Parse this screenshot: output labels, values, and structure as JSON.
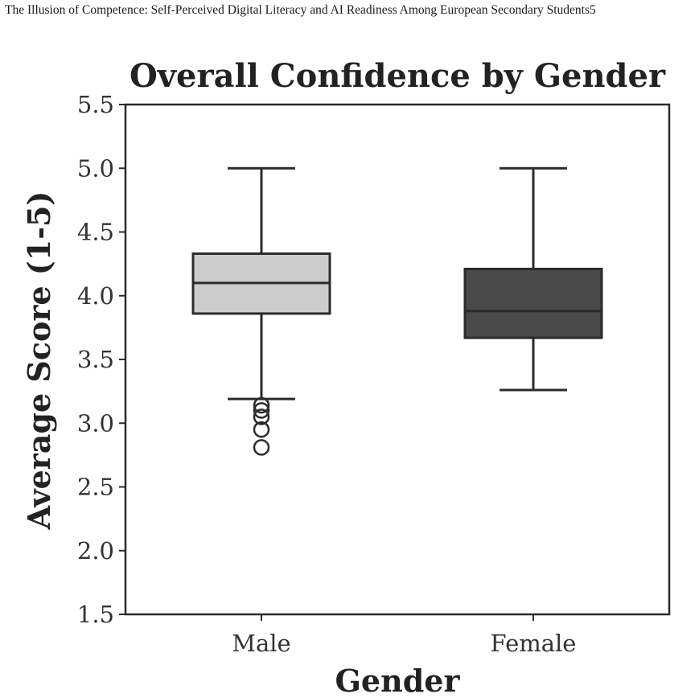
{
  "page": {
    "running_header": "The Illusion of Competence: Self-Perceived Digital Literacy and AI Readiness Among European Secondary Students5"
  },
  "chart_data": {
    "type": "box",
    "title": "Overall Confidence by Gender",
    "xlabel": "Gender",
    "ylabel": "Average Score (1-5)",
    "ylim": [
      1.5,
      5.5
    ],
    "yticks": [
      "1.5",
      "2.0",
      "2.5",
      "3.0",
      "3.5",
      "4.0",
      "4.5",
      "5.0",
      "5.5"
    ],
    "categories": [
      "Male",
      "Female"
    ],
    "boxes": [
      {
        "category": "Male",
        "whisker_low": 3.19,
        "q1": 3.86,
        "median": 4.1,
        "q3": 4.33,
        "whisker_high": 5.0,
        "outliers": [
          3.14,
          3.1,
          3.05,
          2.95,
          2.81
        ],
        "color": "#cccccc"
      },
      {
        "category": "Female",
        "whisker_low": 3.26,
        "q1": 3.67,
        "median": 3.88,
        "q3": 4.21,
        "whisker_high": 5.0,
        "outliers": [],
        "color": "#4a4a4a"
      }
    ],
    "grid": false
  }
}
